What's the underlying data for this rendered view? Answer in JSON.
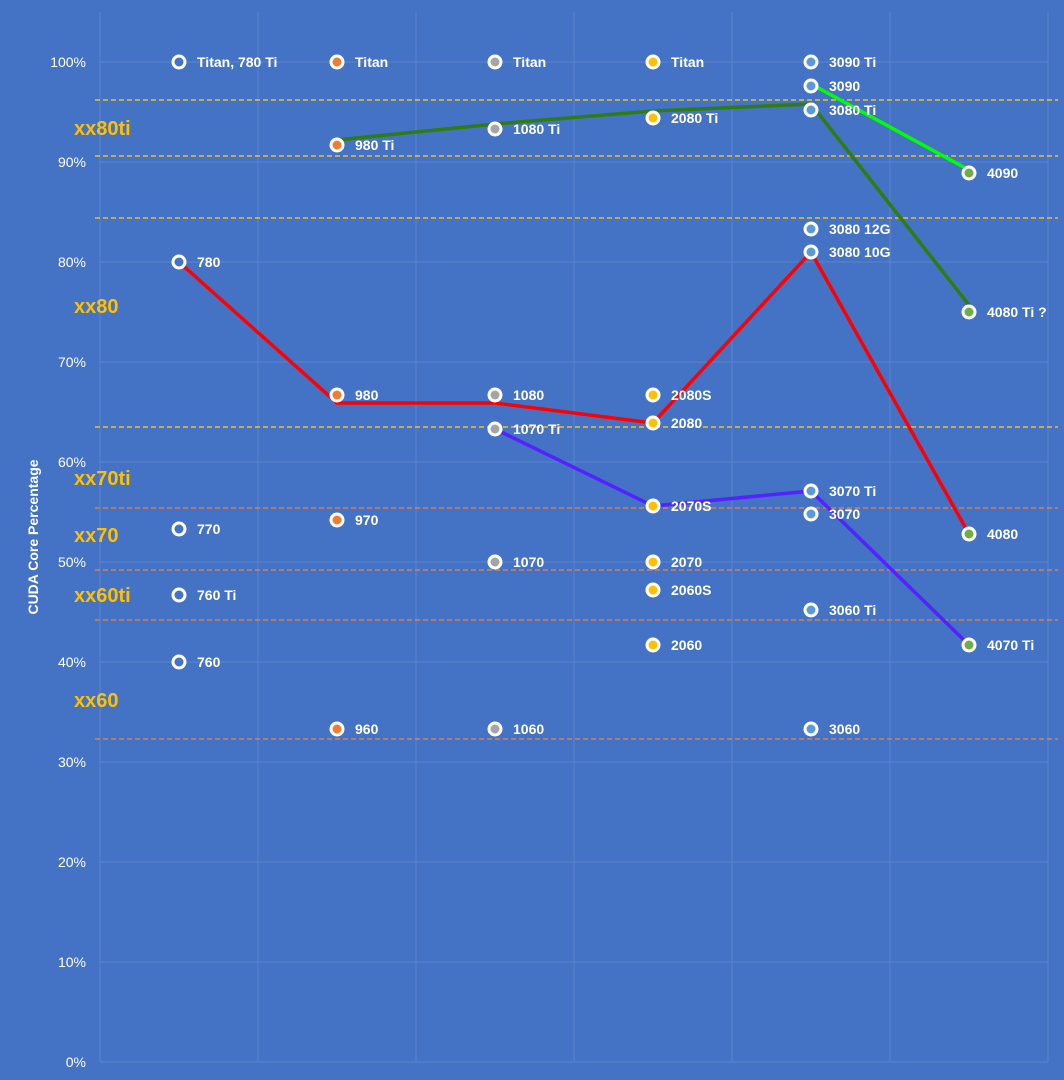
{
  "chart_data": {
    "type": "scatter",
    "title": "",
    "xlabel": "",
    "ylabel": "CUDA Core Percentage",
    "ylim": [
      0,
      100
    ],
    "yticks": [
      "0%",
      "10%",
      "20%",
      "30%",
      "40%",
      "50%",
      "60%",
      "70%",
      "80%",
      "90%",
      "100%"
    ],
    "x_categories": 6,
    "grid": true,
    "background": "#4472c4",
    "marker_colors": [
      "#4472c4",
      "#ed7d31",
      "#a5a5a5",
      "#ffc000",
      "#5b9bd5",
      "#70ad47"
    ],
    "points": [
      [
        {
          "label": "Titan, 780 Ti",
          "y": 100
        },
        {
          "label": "780",
          "y": 80
        },
        {
          "label": "770",
          "y": 53.3
        },
        {
          "label": "760 Ti",
          "y": 46.7
        },
        {
          "label": "760",
          "y": 40
        }
      ],
      [
        {
          "label": "Titan",
          "y": 100
        },
        {
          "label": "980 Ti",
          "y": 91.7
        },
        {
          "label": "980",
          "y": 66.7
        },
        {
          "label": "970",
          "y": 54.2
        },
        {
          "label": "960",
          "y": 33.3
        }
      ],
      [
        {
          "label": "Titan",
          "y": 100
        },
        {
          "label": "1080 Ti",
          "y": 93.3
        },
        {
          "label": "1080",
          "y": 66.7
        },
        {
          "label": "1070 Ti",
          "y": 63.3
        },
        {
          "label": "1070",
          "y": 50
        },
        {
          "label": "1060",
          "y": 33.3
        }
      ],
      [
        {
          "label": "Titan",
          "y": 100
        },
        {
          "label": "2080 Ti",
          "y": 94.4
        },
        {
          "label": "2080S",
          "y": 66.7
        },
        {
          "label": "2080",
          "y": 63.9
        },
        {
          "label": "2070S",
          "y": 55.6
        },
        {
          "label": "2070",
          "y": 50
        },
        {
          "label": "2060S",
          "y": 47.2
        },
        {
          "label": "2060",
          "y": 41.7
        }
      ],
      [
        {
          "label": "3090 Ti",
          "y": 100
        },
        {
          "label": "3090",
          "y": 97.6
        },
        {
          "label": "3080 Ti",
          "y": 95.2
        },
        {
          "label": "3080 12G",
          "y": 83.3
        },
        {
          "label": "3080 10G",
          "y": 81
        },
        {
          "label": "3070 Ti",
          "y": 57.1
        },
        {
          "label": "3070",
          "y": 54.8
        },
        {
          "label": "3060 Ti",
          "y": 45.2
        },
        {
          "label": "3060",
          "y": 33.3
        }
      ],
      [
        {
          "label": "4090",
          "y": 88.9
        },
        {
          "label": "4080 Ti ?",
          "y": 75
        },
        {
          "label": "4080",
          "y": 52.8
        },
        {
          "label": "4070 Ti",
          "y": 41.7
        }
      ]
    ],
    "lines": [
      {
        "color": "#2e7d0e",
        "x": [
          1,
          2,
          3,
          4,
          5
        ],
        "y": [
          92.2,
          93.8,
          95.1,
          95.8,
          75.7
        ]
      },
      {
        "color": "#00ff00",
        "x": [
          4,
          5
        ],
        "y": [
          97.8,
          89.2
        ]
      },
      {
        "color": "#ff0000",
        "x": [
          0,
          1,
          2,
          3,
          4,
          5
        ],
        "y": [
          80,
          65.9,
          65.9,
          63.9,
          81,
          52.8
        ]
      },
      {
        "color": "#5522ff",
        "x": [
          2,
          3,
          4,
          5
        ],
        "y": [
          63.3,
          55.6,
          57.1,
          41.7
        ]
      }
    ],
    "thresholds": [
      {
        "y": 96.2,
        "color": "#ffc000"
      },
      {
        "y": 90.6,
        "color": "#ffc000"
      },
      {
        "y": 84.4,
        "color": "#ffc000"
      },
      {
        "y": 63.5,
        "color": "#ffc000"
      },
      {
        "y": 55.4,
        "color": "#ed7d31"
      },
      {
        "y": 49.2,
        "color": "#ed7d31"
      },
      {
        "y": 44.2,
        "color": "#ed7d31"
      },
      {
        "y": 32.3,
        "color": "#ed7d31"
      }
    ],
    "bands": [
      {
        "label": "xx80ti",
        "y": 93.4
      },
      {
        "label": "xx80",
        "y": 75.6
      },
      {
        "label": "xx70ti",
        "y": 58.4
      },
      {
        "label": "xx70",
        "y": 52.7
      },
      {
        "label": "xx60ti",
        "y": 46.7
      },
      {
        "label": "xx60",
        "y": 36.2
      }
    ]
  }
}
